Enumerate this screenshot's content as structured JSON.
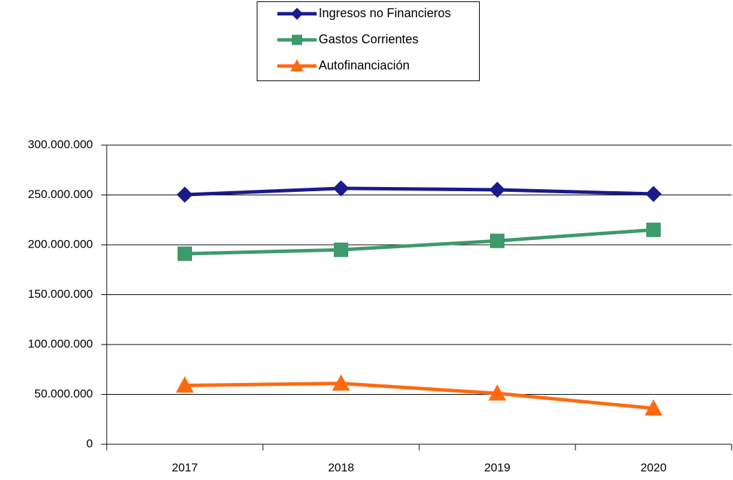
{
  "chart_data": {
    "type": "line",
    "categories": [
      "2017",
      "2018",
      "2019",
      "2020"
    ],
    "series": [
      {
        "name": "Ingresos no Financieros",
        "color": "#1a1a8c",
        "marker": "diamond",
        "values": [
          250300000,
          256600000,
          255200000,
          251000000
        ]
      },
      {
        "name": "Gastos Corrientes",
        "color": "#3d9a6b",
        "marker": "square",
        "values": [
          191000000,
          195000000,
          204000000,
          215000000
        ]
      },
      {
        "name": "Autofinanciación",
        "color": "#ff6a10",
        "marker": "triangle",
        "values": [
          59000000,
          61000000,
          51000000,
          36000000
        ]
      }
    ],
    "ylim": [
      0,
      300000000
    ],
    "yticks": [
      0,
      {
        "value": 50000000,
        "label": "50.000.000"
      },
      {
        "value": 100000000,
        "label": "100.000.000"
      },
      {
        "value": 150000000,
        "label": "150.000.000"
      },
      {
        "value": 200000000,
        "label": "200.000.000"
      },
      {
        "value": 250000000,
        "label": "250.000.000"
      },
      {
        "value": 300000000,
        "label": "300.000.000"
      }
    ],
    "grid": true,
    "legend": "top"
  }
}
